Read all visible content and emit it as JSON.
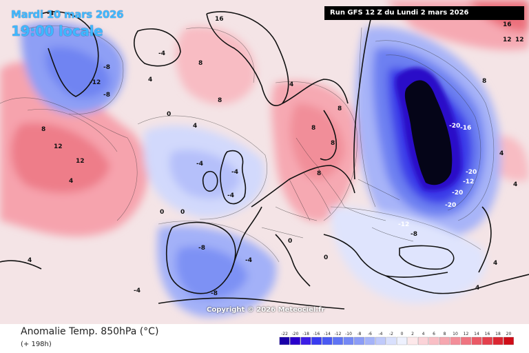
{
  "header": {
    "date_label": "Mardi 10 mars 2026",
    "time_label": "19:00 locale",
    "run_label": "Run GFS 12 Z du Lundi 2 mars 2026",
    "copyright": "Copyright © 2026 Meteociel.fr"
  },
  "footer": {
    "title": "Anomalie Temp. 850hPa (°C)",
    "subtitle": "(+ 198h)"
  },
  "legend": {
    "labels": [
      "-22",
      "-20",
      "-18",
      "-16",
      "-14",
      "-12",
      "-10",
      "-8",
      "-6",
      "-4",
      "-2",
      "0",
      "2",
      "4",
      "6",
      "8",
      "10",
      "12",
      "14",
      "16",
      "18",
      "20"
    ],
    "colors": [
      "#1a00a8",
      "#2a00cc",
      "#3c1ee6",
      "#3a3cf0",
      "#4a5af2",
      "#5f74f4",
      "#7488f5",
      "#8b9cf7",
      "#a5b3f9",
      "#c0cafb",
      "#d9e0fd",
      "#eef1fe",
      "#fde8ea",
      "#fbd3d8",
      "#f9bec5",
      "#f6a7b0",
      "#f38e99",
      "#ef7480",
      "#ea5a66",
      "#e4404c",
      "#db2632",
      "#cf0d18"
    ]
  },
  "contour_labels": [
    {
      "text": "-4",
      "color": "dark"
    },
    {
      "text": "-8",
      "color": "dark"
    },
    {
      "text": "-12",
      "color": "dark"
    },
    {
      "text": "-8",
      "color": "dark"
    },
    {
      "text": "-4",
      "color": "dark"
    },
    {
      "text": "0",
      "color": "dark"
    },
    {
      "text": "4",
      "color": "dark"
    },
    {
      "text": "8",
      "color": "dark"
    },
    {
      "text": "12",
      "color": "dark"
    },
    {
      "text": "16",
      "color": "dark"
    },
    {
      "text": "8",
      "color": "dark"
    },
    {
      "text": "4",
      "color": "dark"
    },
    {
      "text": "8",
      "color": "dark"
    },
    {
      "text": "4",
      "color": "dark"
    },
    {
      "text": "0",
      "color": "dark"
    },
    {
      "text": "8",
      "color": "dark"
    },
    {
      "text": "12",
      "color": "dark"
    },
    {
      "text": "12",
      "color": "dark"
    },
    {
      "text": "8",
      "color": "dark"
    },
    {
      "text": "4",
      "color": "dark"
    },
    {
      "text": "-4",
      "color": "dark"
    },
    {
      "text": "-4",
      "color": "dark"
    },
    {
      "text": "0",
      "color": "dark"
    },
    {
      "text": "4",
      "color": "dark"
    },
    {
      "text": "8",
      "color": "dark"
    },
    {
      "text": "8",
      "color": "dark"
    },
    {
      "text": "8",
      "color": "dark"
    },
    {
      "text": "4",
      "color": "dark"
    },
    {
      "text": "-20",
      "color": "light"
    },
    {
      "text": "-16",
      "color": "light"
    },
    {
      "text": "-20",
      "color": "light"
    },
    {
      "text": "-12",
      "color": "light"
    },
    {
      "text": "-20",
      "color": "light"
    },
    {
      "text": "-20",
      "color": "light"
    },
    {
      "text": "-12",
      "color": "light"
    },
    {
      "text": "-8",
      "color": "dark"
    },
    {
      "text": "-4",
      "color": "dark"
    },
    {
      "text": "-8",
      "color": "dark"
    },
    {
      "text": "-4",
      "color": "dark"
    },
    {
      "text": "-8",
      "color": "dark"
    },
    {
      "text": "-4",
      "color": "dark"
    },
    {
      "text": "0",
      "color": "dark"
    },
    {
      "text": "4",
      "color": "dark"
    },
    {
      "text": "0",
      "color": "dark"
    },
    {
      "text": "4",
      "color": "dark"
    },
    {
      "text": "12",
      "color": "dark"
    },
    {
      "text": "16",
      "color": "dark"
    },
    {
      "text": "4",
      "color": "dark"
    }
  ]
}
